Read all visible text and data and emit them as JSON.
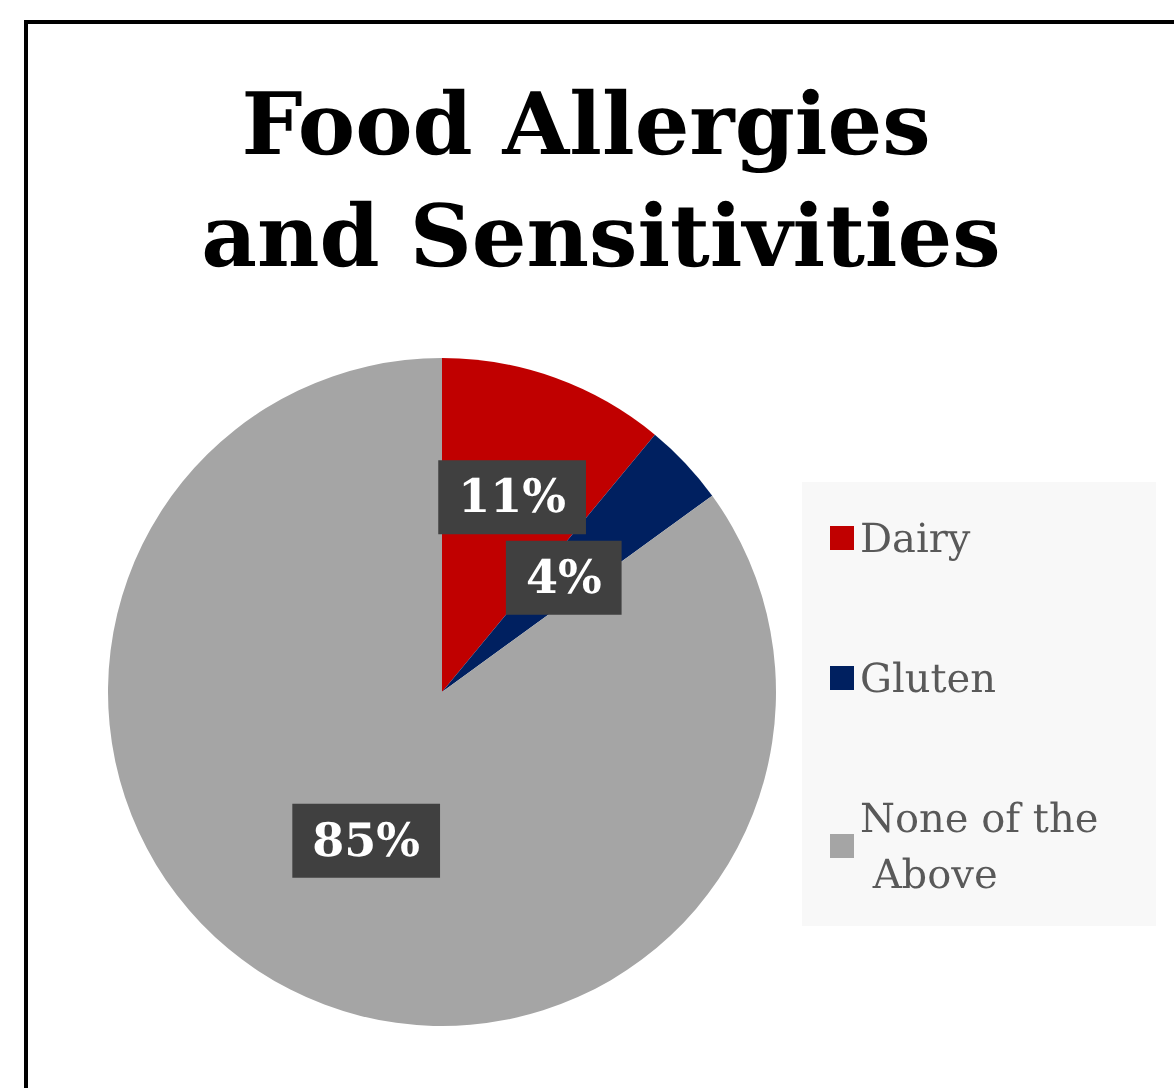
{
  "chart_data": {
    "type": "pie",
    "title": "Food Allergies and Sensitivities",
    "categories": [
      "Dairy",
      "Gluten",
      "None of the Above"
    ],
    "values": [
      11,
      4,
      85
    ],
    "colors": [
      "#c00000",
      "#002060",
      "#a5a5a5"
    ],
    "value_labels": [
      "11%",
      "4%",
      "85%"
    ],
    "legend": "right"
  }
}
